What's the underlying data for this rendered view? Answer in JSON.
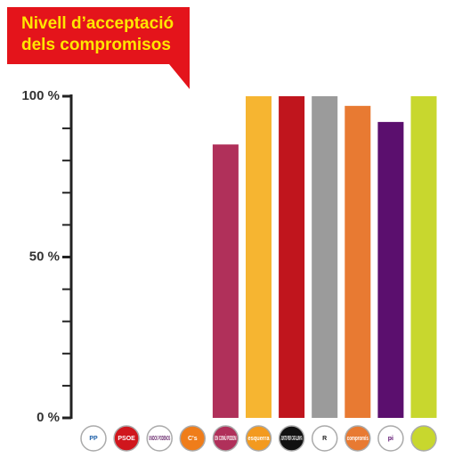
{
  "chart_data": {
    "type": "bar",
    "title_lines": [
      "Nivell d’acceptació",
      "dels compromisos"
    ],
    "categories": [
      "PP",
      "PSOE",
      "UNIDOS PODEMOS",
      "C's",
      "EN COMÚ PODEM",
      "esquerra",
      "JUNTS PER CATALUNYA",
      "R",
      "compromís",
      "pi",
      null
    ],
    "values": [
      0,
      0,
      0,
      0,
      85,
      100,
      100,
      100,
      97,
      92,
      100
    ],
    "colors": [
      "#1d5fa8",
      "#d0161d",
      "#6b2c6e",
      "#ef7d1a",
      "#b0305a",
      "#f6b531",
      "#c0151d",
      "#9b9b9b",
      "#e87a32",
      "#5b0f6e",
      "#c8d72e"
    ],
    "ylim": [
      0,
      100
    ],
    "yticks": [
      {
        "value": 0,
        "label": "0 %"
      },
      {
        "value": 50,
        "label": "50 %"
      },
      {
        "value": 100,
        "label": "100 %"
      }
    ],
    "yminorticks": [
      10,
      20,
      30,
      40,
      60,
      70,
      80,
      90
    ]
  }
}
